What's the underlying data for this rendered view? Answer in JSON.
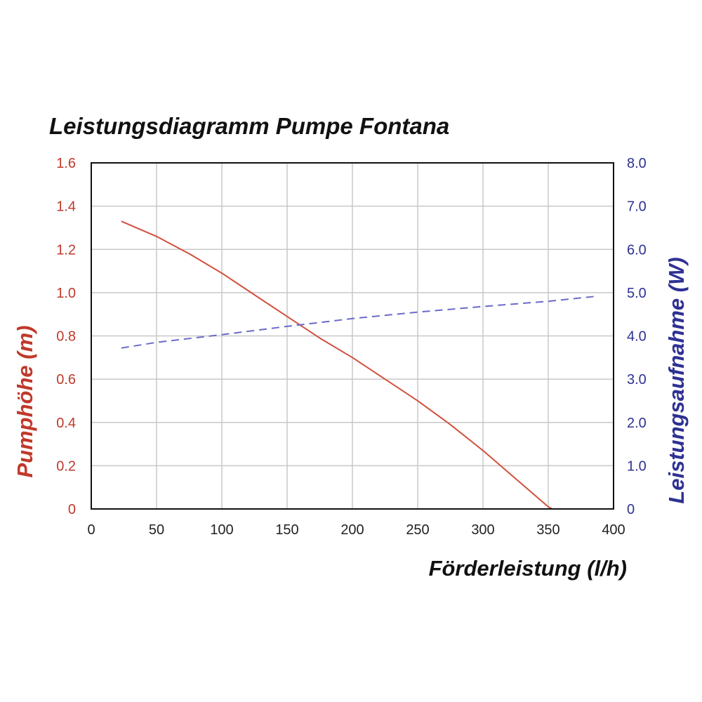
{
  "chart_data": {
    "type": "line",
    "title": "Leistungsdiagramm Pumpe Fontana",
    "xlabel": "Förderleistung (l/h)",
    "ylabel_left": "Pumphöhe (m)",
    "ylabel_right": "Leistungsaufnahme (W)",
    "xlim": [
      0,
      400
    ],
    "ylim_left": [
      0,
      1.6
    ],
    "ylim_right": [
      0,
      8.0
    ],
    "x_ticks": [
      "0",
      "50",
      "100",
      "150",
      "200",
      "250",
      "300",
      "350",
      "400"
    ],
    "y_left_ticks": [
      "0",
      "0.2",
      "0.4",
      "0.6",
      "0.8",
      "1.0",
      "1.2",
      "1.4",
      "1.6"
    ],
    "y_right_ticks": [
      "0",
      "1.0",
      "2.0",
      "3.0",
      "4.0",
      "5.0",
      "6.0",
      "7.0",
      "8.0"
    ],
    "grid": true,
    "colors": {
      "left_axis": "#c0392b",
      "right_axis": "#2e3192",
      "head_line": "#d0503e",
      "power_line": "#6a6ac8",
      "grid": "#c8c8c8",
      "frame": "#111111"
    },
    "series": [
      {
        "axis": "left",
        "style": "solid",
        "x": [
          23,
          50,
          75,
          100,
          125,
          150,
          175,
          200,
          225,
          250,
          275,
          300,
          325,
          350,
          353
        ],
        "y": [
          1.33,
          1.26,
          1.18,
          1.09,
          0.99,
          0.89,
          0.79,
          0.7,
          0.6,
          0.5,
          0.39,
          0.27,
          0.14,
          0.01,
          0.0
        ]
      },
      {
        "axis": "right",
        "style": "dashed",
        "x": [
          23,
          50,
          100,
          150,
          200,
          250,
          300,
          350,
          388
        ],
        "y": [
          3.72,
          3.85,
          4.03,
          4.22,
          4.4,
          4.55,
          4.68,
          4.8,
          4.92
        ]
      }
    ]
  }
}
